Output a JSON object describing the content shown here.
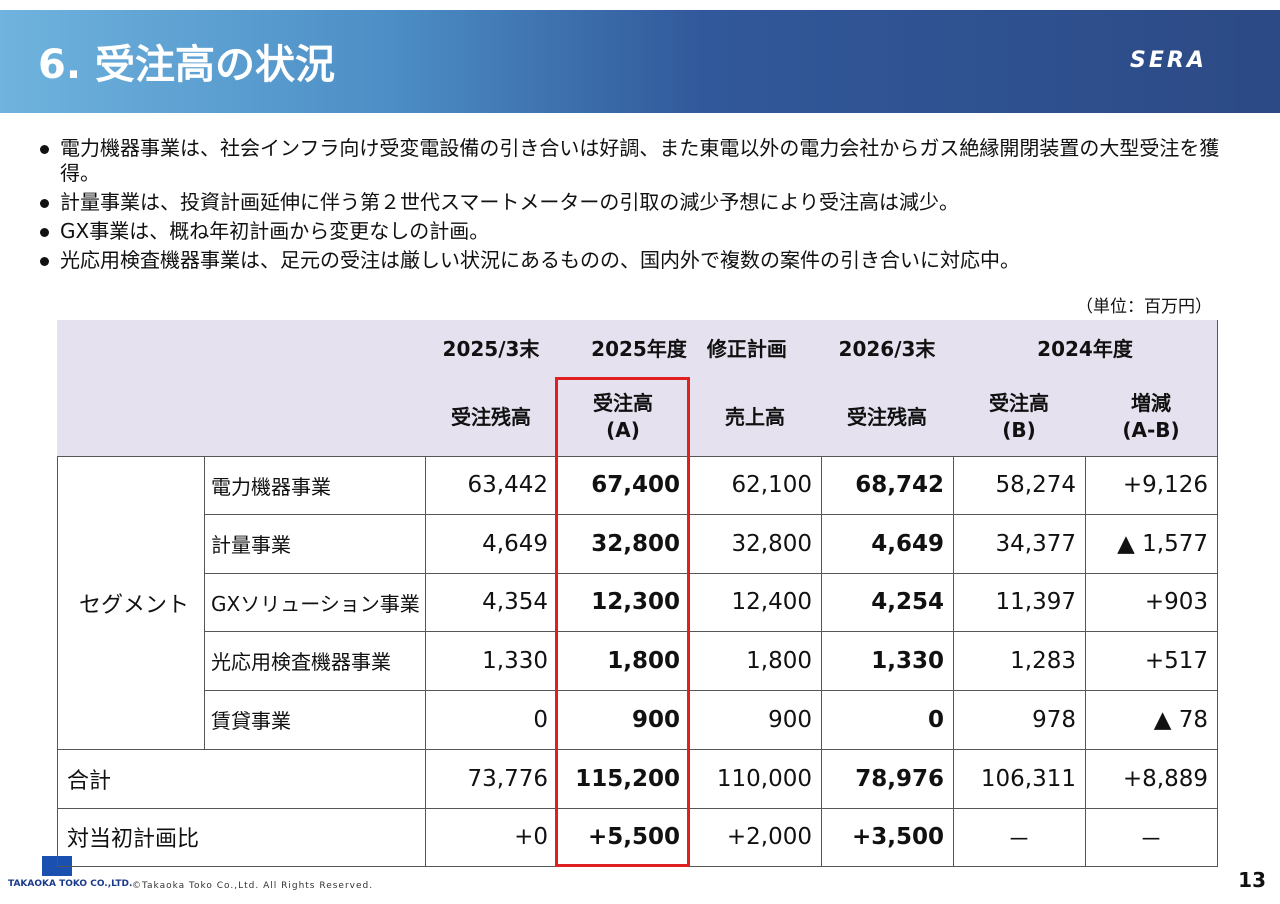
{
  "header": {
    "title": "6. 受注高の状況",
    "logo": "SERA"
  },
  "bullets": [
    "電力機器事業は、社会インフラ向け受変電設備の引き合いは好調、また東電以外の電力会社からガス絶縁開閉装置の大型受注を獲得。",
    "計量事業は、投資計画延伸に伴う第２世代スマートメーターの引取の減少予想により受注高は減少。",
    "GX事業は、概ね年初計画から変更なしの計画。",
    "光応用検査機器事業は、足元の受注は厳しい状況にあるものの、国内外で複数の案件の引き合いに対応中。"
  ],
  "unit": "（単位：百万円）",
  "table": {
    "header_top": [
      "2025/3末",
      "2025年度　修正計画",
      "2026/3末",
      "2024年度"
    ],
    "header_sub": [
      [
        "受注残高"
      ],
      [
        "受注高",
        "(A)"
      ],
      [
        "売上高"
      ],
      [
        "受注残高"
      ],
      [
        "受注高",
        "(B)"
      ],
      [
        "増減",
        "(A-B)"
      ]
    ],
    "segment_label": "セグメント",
    "rows": [
      {
        "label": "電力機器事業",
        "values": [
          "63,442",
          "67,400",
          "62,100",
          "68,742",
          "58,274",
          "+9,126"
        ]
      },
      {
        "label": "計量事業",
        "values": [
          "4,649",
          "32,800",
          "32,800",
          "4,649",
          "34,377",
          "▲ 1,577"
        ]
      },
      {
        "label": "GXソリューション事業",
        "values": [
          "4,354",
          "12,300",
          "12,400",
          "4,254",
          "11,397",
          "+903"
        ]
      },
      {
        "label": "光応用検査機器事業",
        "values": [
          "1,330",
          "1,800",
          "1,800",
          "1,330",
          "1,283",
          "+517"
        ]
      },
      {
        "label": "賃貸事業",
        "values": [
          "0",
          "900",
          "900",
          "0",
          "978",
          "▲ 78"
        ]
      },
      {
        "label": "合計",
        "values": [
          "73,776",
          "115,200",
          "110,000",
          "78,976",
          "106,311",
          "+8,889"
        ]
      },
      {
        "label": "対当初計画比",
        "values": [
          "+0",
          "+5,500",
          "+2,000",
          "+3,500",
          "－",
          "－"
        ]
      }
    ]
  },
  "footer": {
    "company": "TAKAOKA TOKO CO.,LTD.",
    "copyright": "©Takaoka Toko Co.,Ltd. All Rights Reserved.",
    "page": "13"
  }
}
